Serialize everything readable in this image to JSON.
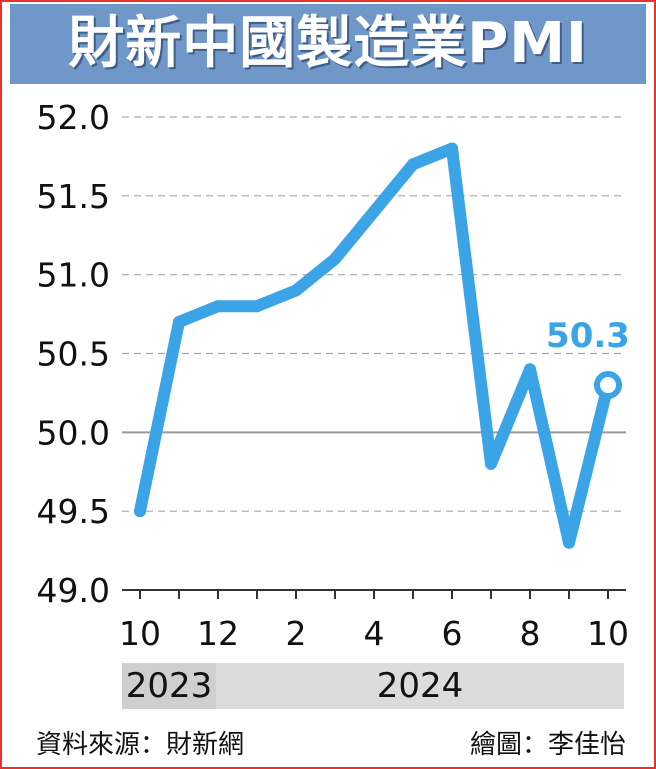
{
  "title": "財新中國製造業PMI",
  "chart_data": {
    "type": "line",
    "x": [
      "2023-10",
      "2023-11",
      "2023-12",
      "2024-01",
      "2024-02",
      "2024-03",
      "2024-04",
      "2024-05",
      "2024-06",
      "2024-07",
      "2024-08",
      "2024-09",
      "2024-10"
    ],
    "values": [
      49.5,
      50.7,
      50.8,
      50.8,
      50.9,
      51.1,
      51.4,
      51.7,
      51.8,
      49.8,
      50.4,
      49.3,
      50.3
    ],
    "x_tick_labels": [
      "10",
      "12",
      "2",
      "4",
      "6",
      "8",
      "10"
    ],
    "x_tick_indices": [
      0,
      2,
      4,
      6,
      8,
      10,
      12
    ],
    "y_ticks": [
      "49.0",
      "49.5",
      "50.0",
      "50.5",
      "51.0",
      "51.5",
      "52.0"
    ],
    "ylim": [
      49.0,
      52.0
    ],
    "reference_line": 50.0,
    "last_point_label": "50.3",
    "years": [
      "2023",
      "2024"
    ],
    "grid": "dashed horizontal",
    "line_color": "#3ba4e6",
    "accent_color": "#6f98c8"
  },
  "footer": {
    "source": "資料來源：財新網",
    "credit": "繪圖：李佳怡"
  }
}
